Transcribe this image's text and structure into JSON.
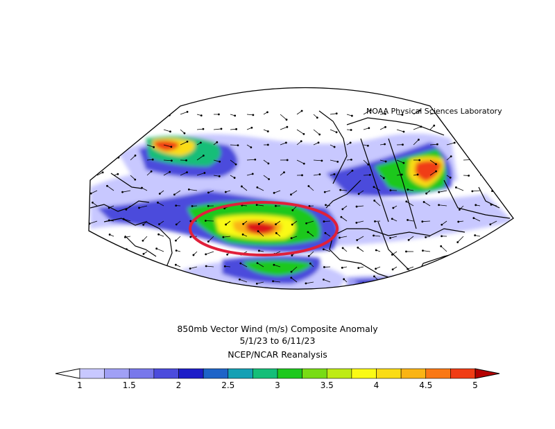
{
  "credit": "NOAA Physical Sciences Laboratory",
  "title": "850mb Vector Wind (m/s) Composite Anomaly",
  "date_range": "5/1/23   to 6/11/23",
  "source": "NCEP/NCAR Reanalysis",
  "colorbar": {
    "min": 1,
    "max": 5,
    "tick_labels": [
      "1",
      "1.5",
      "2",
      "2.5",
      "3",
      "3.5",
      "4",
      "4.5",
      "5"
    ],
    "colors": [
      "#c8c8ff",
      "#a0a0f5",
      "#7878eb",
      "#4b4bdc",
      "#1e1ec8",
      "#1e64c8",
      "#14a0b4",
      "#14be78",
      "#1ec81e",
      "#78dc14",
      "#beeb14",
      "#fafa14",
      "#fadc14",
      "#fab414",
      "#fa7814",
      "#f03c14",
      "#dc1414",
      "#b40000"
    ]
  },
  "map": {
    "region": "Atlantic Ocean / Africa / Caribbean",
    "variable": "850mb vector wind anomaly",
    "units": "m/s",
    "highlight": "red ellipse around tropical Atlantic maximum"
  }
}
